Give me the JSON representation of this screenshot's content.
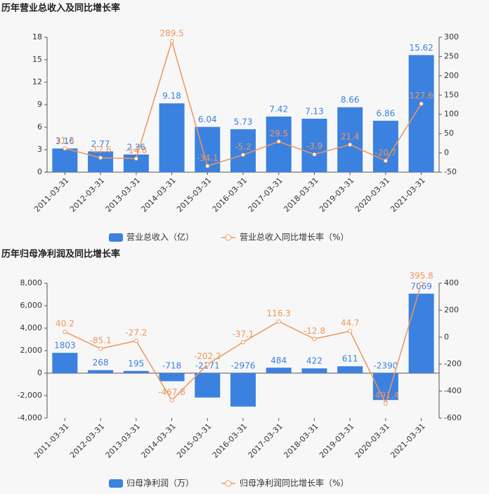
{
  "chart_data": [
    {
      "type": "combo",
      "title": "历年营业总收入及同比增长率",
      "categories": [
        "2011-03-31",
        "2012-03-31",
        "2013-03-31",
        "2014-03-31",
        "2015-03-31",
        "2016-03-31",
        "2017-03-31",
        "2018-03-31",
        "2019-03-31",
        "2020-03-31",
        "2021-03-31"
      ],
      "series": [
        {
          "name": "营业总收入（亿）",
          "type": "bar",
          "color": "#3b82e0",
          "values": [
            3.16,
            2.77,
            2.36,
            9.18,
            6.04,
            5.73,
            7.42,
            7.13,
            8.66,
            6.86,
            15.62
          ]
        },
        {
          "name": "营业总收入同比增长率（%）",
          "type": "line",
          "axis": "y2",
          "color": "#f0965a",
          "values": [
            11.3,
            -12.6,
            -14.8,
            289.5,
            -34.1,
            -5.2,
            29.5,
            -3.9,
            21.4,
            -20.7,
            127.6
          ]
        }
      ],
      "ylim": [
        0,
        18
      ],
      "yticks": [
        0,
        3,
        6,
        9,
        12,
        15,
        18
      ],
      "y2lim": [
        -50,
        300
      ],
      "y2ticks": [
        -50,
        0,
        50,
        100,
        150,
        200,
        250,
        300
      ]
    },
    {
      "type": "combo",
      "title": "历年归母净利润及同比增长率",
      "categories": [
        "2011-03-31",
        "2012-03-31",
        "2013-03-31",
        "2014-03-31",
        "2015-03-31",
        "2016-03-31",
        "2017-03-31",
        "2018-03-31",
        "2019-03-31",
        "2020-03-31",
        "2021-03-31"
      ],
      "series": [
        {
          "name": "归母净利润（万）",
          "type": "bar",
          "color": "#3b82e0",
          "values": [
            1803,
            268,
            195,
            -718,
            -2171,
            -2976,
            484,
            422,
            611,
            -2390,
            7069
          ]
        },
        {
          "name": "归母净利润同比增长率（%）",
          "type": "line",
          "axis": "y2",
          "color": "#f0965a",
          "values": [
            40.2,
            -85.1,
            -27.2,
            -467.8,
            -202.2,
            -37.1,
            116.3,
            -12.8,
            44.7,
            -491.4,
            395.8
          ]
        }
      ],
      "ylim": [
        -4000,
        8000
      ],
      "yticks": [
        {
          "value": -4000,
          "label": "-4,000"
        },
        {
          "value": -2000,
          "label": "-2,000"
        },
        0,
        {
          "value": 2000,
          "label": "2,000"
        },
        {
          "value": 4000,
          "label": "4,000"
        },
        {
          "value": 6000,
          "label": "6,000"
        },
        {
          "value": 8000,
          "label": "8,000"
        }
      ],
      "y2lim": [
        -600,
        400
      ],
      "y2ticks": [
        -600,
        -400,
        -200,
        0,
        200,
        400
      ]
    }
  ]
}
